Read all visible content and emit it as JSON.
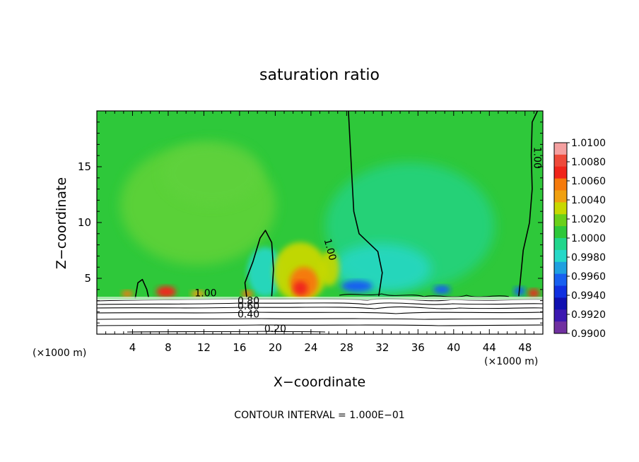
{
  "chart_data": {
    "type": "heatmap",
    "title": "saturation ratio",
    "xlabel": "X−coordinate",
    "ylabel": "Z−coordinate",
    "x_unit_left": "(×1000 m)",
    "x_unit_right": "(×1000 m)",
    "xlim": [
      0,
      50
    ],
    "ylim": [
      0,
      20
    ],
    "x_ticks": [
      4,
      8,
      12,
      16,
      20,
      24,
      28,
      32,
      36,
      40,
      44,
      48
    ],
    "y_ticks": [
      5,
      10,
      15
    ],
    "footer": "CONTOUR INTERVAL = 1.000E−01",
    "colorbar": {
      "labels": [
        "1.0100",
        "1.0080",
        "1.0060",
        "1.0040",
        "1.0020",
        "1.0000",
        "0.9980",
        "0.9960",
        "0.9940",
        "0.9920",
        "0.9900"
      ],
      "colors": [
        "#f4a0a0",
        "#ee4a3a",
        "#f0251a",
        "#f57a0c",
        "#f0a010",
        "#c8d800",
        "#6ad01a",
        "#2ec83a",
        "#21d68c",
        "#26d8c8",
        "#1fa0e0",
        "#1860f0",
        "#1030e0",
        "#1010b0",
        "#3c18b0",
        "#7030a0"
      ]
    },
    "contour_labels": [
      {
        "text": "1.00",
        "x": 12.2,
        "z": 3.4
      },
      {
        "text": "1.00",
        "x": 25.8,
        "z": 7.5
      },
      {
        "text": "1.00",
        "x": 49.0,
        "z": 15.8
      },
      {
        "text": "0.80",
        "x": 17.0,
        "z": 2.7
      },
      {
        "text": "0.60",
        "x": 17.0,
        "z": 2.2
      },
      {
        "text": "0.40",
        "x": 17.0,
        "z": 1.5
      },
      {
        "text": "0.20",
        "x": 20.0,
        "z": 0.2
      }
    ],
    "contours": [
      {
        "value": 1.0,
        "points": [
          [
            28.2,
            20
          ],
          [
            28.4,
            17
          ],
          [
            28.6,
            14
          ],
          [
            28.8,
            11
          ],
          [
            29.4,
            9.0
          ],
          [
            31.5,
            7.4
          ],
          [
            32.0,
            5.5
          ],
          [
            31.6,
            3.4
          ]
        ]
      },
      {
        "value": 1.0,
        "points": [
          [
            49.4,
            20
          ],
          [
            48.8,
            19
          ],
          [
            48.7,
            16
          ],
          [
            48.8,
            13
          ],
          [
            48.5,
            10
          ],
          [
            47.8,
            7.5
          ],
          [
            47.5,
            5.0
          ],
          [
            47.3,
            3.4
          ]
        ]
      },
      {
        "value": 1.0,
        "points": [
          [
            16.8,
            3.3
          ],
          [
            16.6,
            4.6
          ],
          [
            17.5,
            6.5
          ],
          [
            18.3,
            8.6
          ],
          [
            18.9,
            9.3
          ],
          [
            19.6,
            8.2
          ],
          [
            19.8,
            5.8
          ],
          [
            19.6,
            3.4
          ]
        ]
      },
      {
        "value": 1.0,
        "points": [
          [
            4.3,
            3.2
          ],
          [
            4.6,
            4.6
          ],
          [
            5.1,
            4.9
          ],
          [
            5.6,
            4.0
          ],
          [
            5.8,
            3.3
          ]
        ]
      }
    ]
  }
}
